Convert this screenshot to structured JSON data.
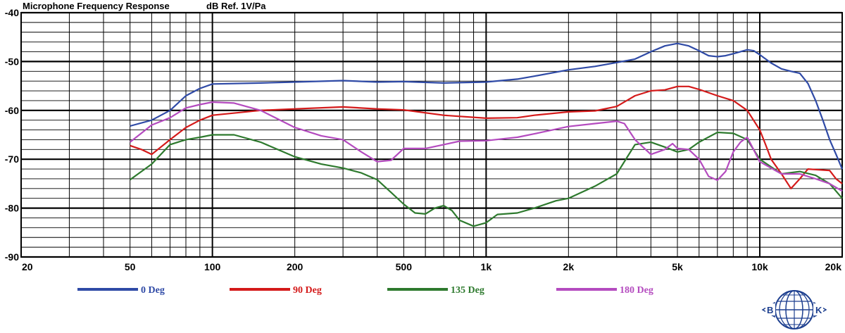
{
  "header": {
    "title": "Microphone Frequency Response",
    "unit": "dB Ref. 1V/Pa"
  },
  "logo": {
    "left": "B",
    "right": "K",
    "color": "#1d3f8f"
  },
  "chart_data": {
    "type": "line",
    "title": "Microphone Frequency Response",
    "ylabel": "dB Ref. 1V/Pa",
    "xlabel": "",
    "x_scale": "log",
    "xlim": [
      20,
      20000
    ],
    "ylim": [
      -90,
      -40
    ],
    "grid": true,
    "legend_position": "bottom",
    "x_ticks": [
      {
        "value": 20,
        "label": "20"
      },
      {
        "value": 50,
        "label": "50"
      },
      {
        "value": 100,
        "label": "100"
      },
      {
        "value": 200,
        "label": "200"
      },
      {
        "value": 500,
        "label": "500"
      },
      {
        "value": 1000,
        "label": "1k"
      },
      {
        "value": 2000,
        "label": "2k"
      },
      {
        "value": 5000,
        "label": "5k"
      },
      {
        "value": 10000,
        "label": "10k"
      },
      {
        "value": 20000,
        "label": "20k"
      }
    ],
    "y_ticks": [
      {
        "value": -40,
        "label": "-40"
      },
      {
        "value": -50,
        "label": "-50"
      },
      {
        "value": -60,
        "label": "-60"
      },
      {
        "value": -70,
        "label": "-70"
      },
      {
        "value": -80,
        "label": "-80"
      },
      {
        "value": -90,
        "label": "-90"
      }
    ],
    "series": [
      {
        "name": "0 Deg",
        "color": "#2f4aa6",
        "points": [
          [
            50,
            -63.2
          ],
          [
            60,
            -62
          ],
          [
            70,
            -60
          ],
          [
            80,
            -57
          ],
          [
            90,
            -55.5
          ],
          [
            100,
            -54.6
          ],
          [
            150,
            -54.4
          ],
          [
            200,
            -54.2
          ],
          [
            300,
            -53.9
          ],
          [
            400,
            -54.2
          ],
          [
            500,
            -54.1
          ],
          [
            700,
            -54.4
          ],
          [
            1000,
            -54.2
          ],
          [
            1300,
            -53.6
          ],
          [
            1500,
            -53
          ],
          [
            2000,
            -51.7
          ],
          [
            2500,
            -51
          ],
          [
            3000,
            -50.2
          ],
          [
            3500,
            -49.5
          ],
          [
            4000,
            -48
          ],
          [
            4500,
            -46.8
          ],
          [
            5000,
            -46.3
          ],
          [
            5500,
            -46.8
          ],
          [
            6000,
            -47.8
          ],
          [
            6500,
            -48.8
          ],
          [
            7000,
            -49
          ],
          [
            7500,
            -48.8
          ],
          [
            8000,
            -48.4
          ],
          [
            9000,
            -47.6
          ],
          [
            9500,
            -47.8
          ],
          [
            10000,
            -48.6
          ],
          [
            11000,
            -50.3
          ],
          [
            12000,
            -51.5
          ],
          [
            13000,
            -52
          ],
          [
            14000,
            -52.4
          ],
          [
            15000,
            -54.5
          ],
          [
            16000,
            -58
          ],
          [
            17000,
            -62
          ],
          [
            18000,
            -66
          ],
          [
            19000,
            -69
          ],
          [
            20000,
            -72
          ]
        ]
      },
      {
        "name": "90 Deg",
        "color": "#d41a1a",
        "points": [
          [
            50,
            -67.2
          ],
          [
            55,
            -68
          ],
          [
            60,
            -69
          ],
          [
            70,
            -66
          ],
          [
            80,
            -63.5
          ],
          [
            90,
            -62
          ],
          [
            100,
            -61
          ],
          [
            150,
            -60
          ],
          [
            200,
            -59.7
          ],
          [
            300,
            -59.3
          ],
          [
            400,
            -59.7
          ],
          [
            500,
            -59.9
          ],
          [
            700,
            -61
          ],
          [
            1000,
            -61.6
          ],
          [
            1300,
            -61.5
          ],
          [
            1500,
            -61
          ],
          [
            2000,
            -60.3
          ],
          [
            2500,
            -60.1
          ],
          [
            3000,
            -59.2
          ],
          [
            3500,
            -57
          ],
          [
            4000,
            -56
          ],
          [
            4500,
            -55.8
          ],
          [
            5000,
            -55.1
          ],
          [
            5500,
            -55.1
          ],
          [
            6000,
            -55.7
          ],
          [
            7000,
            -57
          ],
          [
            8000,
            -58
          ],
          [
            9000,
            -60
          ],
          [
            10000,
            -64
          ],
          [
            10500,
            -67
          ],
          [
            11000,
            -70
          ],
          [
            12000,
            -73
          ],
          [
            13000,
            -76
          ],
          [
            14000,
            -74
          ],
          [
            15000,
            -72
          ],
          [
            18000,
            -72.3
          ],
          [
            19000,
            -74
          ],
          [
            20000,
            -75
          ]
        ]
      },
      {
        "name": "135 Deg",
        "color": "#2e7a2e",
        "points": [
          [
            50,
            -74.2
          ],
          [
            55,
            -72.5
          ],
          [
            60,
            -71
          ],
          [
            70,
            -67
          ],
          [
            80,
            -66
          ],
          [
            90,
            -65.5
          ],
          [
            100,
            -65
          ],
          [
            120,
            -65
          ],
          [
            150,
            -66.5
          ],
          [
            200,
            -69.5
          ],
          [
            250,
            -71
          ],
          [
            300,
            -71.8
          ],
          [
            350,
            -72.8
          ],
          [
            400,
            -74.2
          ],
          [
            450,
            -76.8
          ],
          [
            500,
            -79.2
          ],
          [
            550,
            -81
          ],
          [
            600,
            -81.2
          ],
          [
            650,
            -80
          ],
          [
            700,
            -79.5
          ],
          [
            750,
            -80.5
          ],
          [
            800,
            -82.5
          ],
          [
            900,
            -83.7
          ],
          [
            1000,
            -83
          ],
          [
            1100,
            -81.3
          ],
          [
            1300,
            -81
          ],
          [
            1500,
            -80
          ],
          [
            1800,
            -78.5
          ],
          [
            2000,
            -78
          ],
          [
            2500,
            -75.5
          ],
          [
            3000,
            -73
          ],
          [
            3500,
            -67
          ],
          [
            4000,
            -66.5
          ],
          [
            4500,
            -67.5
          ],
          [
            5000,
            -68.5
          ],
          [
            5500,
            -68
          ],
          [
            6000,
            -66.5
          ],
          [
            7000,
            -64.5
          ],
          [
            8000,
            -64.7
          ],
          [
            9000,
            -66
          ],
          [
            10000,
            -70
          ],
          [
            12000,
            -73
          ],
          [
            14000,
            -72.5
          ],
          [
            16000,
            -73.3
          ],
          [
            18000,
            -75
          ],
          [
            20000,
            -78
          ]
        ]
      },
      {
        "name": "180 Deg",
        "color": "#b44bbf",
        "points": [
          [
            50,
            -66.5
          ],
          [
            60,
            -63
          ],
          [
            70,
            -61.5
          ],
          [
            80,
            -59.5
          ],
          [
            90,
            -58.8
          ],
          [
            100,
            -58.3
          ],
          [
            120,
            -58.5
          ],
          [
            150,
            -60
          ],
          [
            200,
            -63.5
          ],
          [
            250,
            -65.2
          ],
          [
            300,
            -66
          ],
          [
            350,
            -68.5
          ],
          [
            400,
            -70.5
          ],
          [
            450,
            -70.2
          ],
          [
            500,
            -67.8
          ],
          [
            600,
            -67.8
          ],
          [
            700,
            -67
          ],
          [
            800,
            -66.3
          ],
          [
            1000,
            -66.2
          ],
          [
            1300,
            -65.5
          ],
          [
            1500,
            -64.8
          ],
          [
            2000,
            -63.3
          ],
          [
            2500,
            -62.7
          ],
          [
            3000,
            -62.2
          ],
          [
            3200,
            -62.7
          ],
          [
            3500,
            -66
          ],
          [
            4000,
            -69
          ],
          [
            4500,
            -68
          ],
          [
            4800,
            -66.8
          ],
          [
            5000,
            -67.8
          ],
          [
            5500,
            -68
          ],
          [
            6000,
            -70
          ],
          [
            6500,
            -73.5
          ],
          [
            7000,
            -74.3
          ],
          [
            7500,
            -72.5
          ],
          [
            8000,
            -68.5
          ],
          [
            8500,
            -66.5
          ],
          [
            9000,
            -65.5
          ],
          [
            10000,
            -70.5
          ],
          [
            12000,
            -73
          ],
          [
            14000,
            -73
          ],
          [
            16000,
            -74
          ],
          [
            18000,
            -75
          ],
          [
            20000,
            -76.5
          ]
        ]
      }
    ]
  }
}
